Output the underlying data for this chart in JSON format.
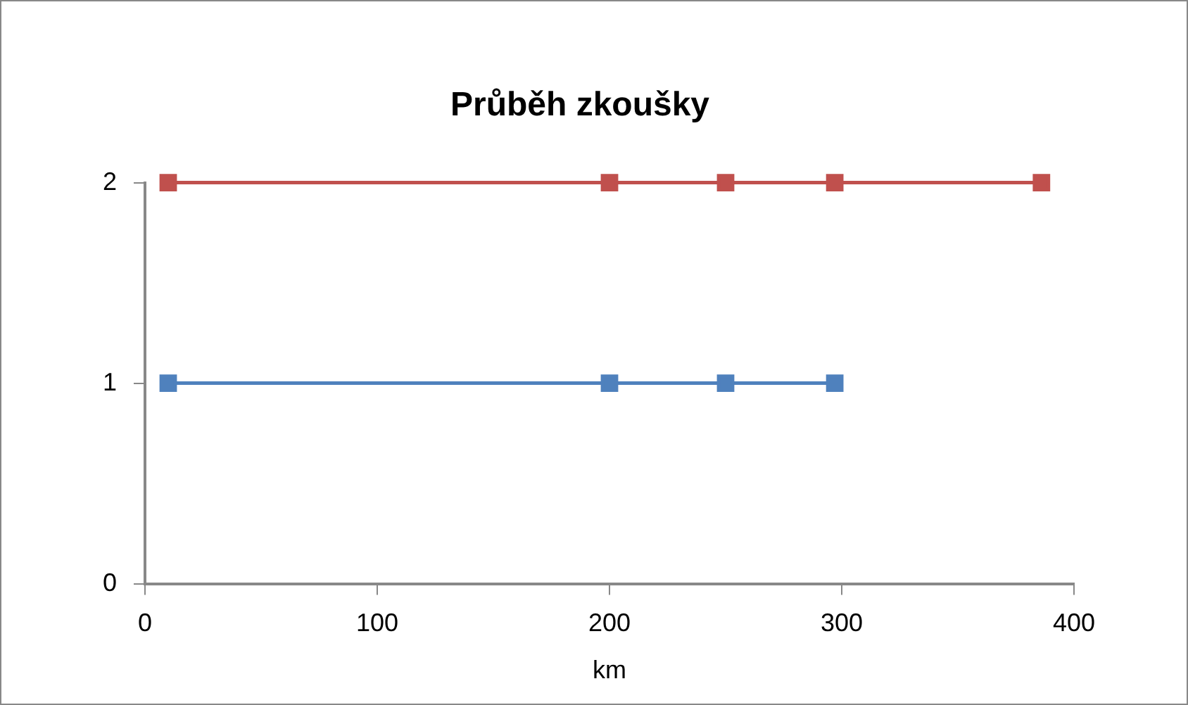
{
  "chart_data": {
    "type": "line",
    "title": "Průběh zkoušky",
    "xlabel": "km",
    "xlim": [
      0,
      400
    ],
    "xticks": [
      0,
      100,
      200,
      300,
      400
    ],
    "ylim": [
      0,
      2
    ],
    "yticks": [
      0,
      1,
      2
    ],
    "grid": false,
    "legend": false,
    "marker": "square",
    "line_style": "solid",
    "series": [
      {
        "color": "#4f81bd",
        "x": [
          10,
          200,
          250,
          297
        ],
        "values": [
          1,
          1,
          1,
          1
        ]
      },
      {
        "color": "#c0504d",
        "x": [
          10,
          200,
          250,
          297,
          386
        ],
        "values": [
          2,
          2,
          2,
          2,
          2
        ]
      }
    ]
  }
}
